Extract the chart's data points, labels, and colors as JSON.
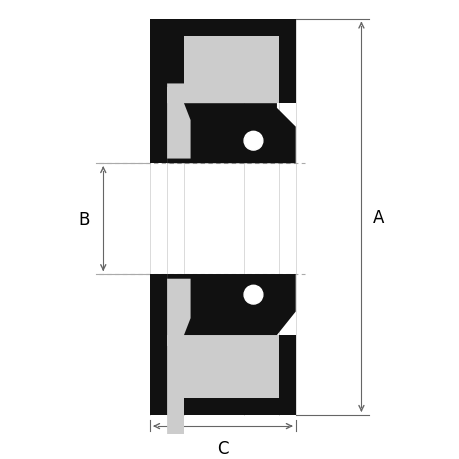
{
  "bg_color": "#ffffff",
  "fill_black": "#111111",
  "fill_gray": "#cccccc",
  "fill_white": "#ffffff",
  "dim_color": "#666666",
  "dash_color": "#aaaaaa",
  "figsize": [
    4.6,
    4.6
  ],
  "dpi": 100,
  "label_A": "A",
  "label_B": "B",
  "label_C": "C",
  "label_fontsize": 12
}
